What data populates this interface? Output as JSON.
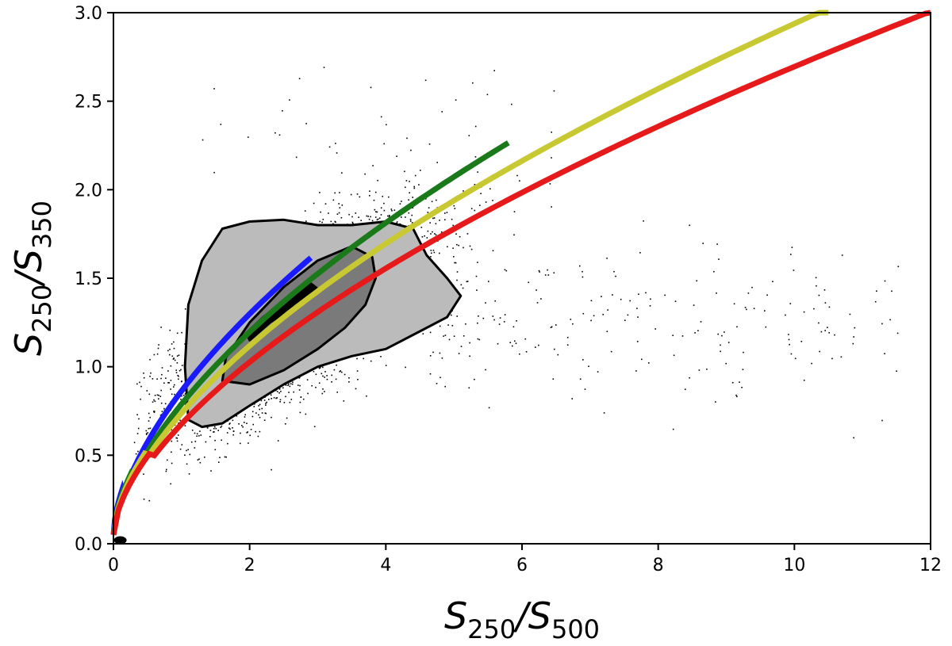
{
  "chart_data": {
    "type": "scatter",
    "title": "",
    "xlabel": {
      "main": "S",
      "sub1": "250",
      "slash": "/S",
      "sub2": "500"
    },
    "ylabel": {
      "main": "S",
      "sub1": "250",
      "slash": "/S",
      "sub2": "350"
    },
    "xlim": [
      0,
      12
    ],
    "ylim": [
      0,
      3.0
    ],
    "x_ticks": [
      "0",
      "2",
      "4",
      "6",
      "8",
      "10",
      "12"
    ],
    "y_ticks": [
      "0.0",
      "0.5",
      "1.0",
      "1.5",
      "2.0",
      "2.5",
      "3.0"
    ],
    "grid": false,
    "legend": null,
    "scatter": {
      "color": "#000000",
      "description_core_center": [
        2.6,
        1.25
      ]
    },
    "contours": [
      {
        "level": "outer",
        "fill": "#bbbbbb",
        "points": [
          [
            1.1,
            0.7
          ],
          [
            1.3,
            0.66
          ],
          [
            1.6,
            0.68
          ],
          [
            2.0,
            0.78
          ],
          [
            2.5,
            0.9
          ],
          [
            3.0,
            1.0
          ],
          [
            3.5,
            1.06
          ],
          [
            4.0,
            1.1
          ],
          [
            4.5,
            1.2
          ],
          [
            4.9,
            1.28
          ],
          [
            5.1,
            1.4
          ],
          [
            4.9,
            1.5
          ],
          [
            4.6,
            1.63
          ],
          [
            4.4,
            1.78
          ],
          [
            4.0,
            1.82
          ],
          [
            3.5,
            1.8
          ],
          [
            3.0,
            1.8
          ],
          [
            2.5,
            1.83
          ],
          [
            2.0,
            1.82
          ],
          [
            1.6,
            1.78
          ],
          [
            1.3,
            1.6
          ],
          [
            1.1,
            1.35
          ],
          [
            1.05,
            1.0
          ]
        ]
      },
      {
        "level": "middle",
        "fill": "#7a7a7a",
        "points": [
          [
            1.6,
            0.92
          ],
          [
            2.0,
            0.9
          ],
          [
            2.5,
            0.98
          ],
          [
            3.0,
            1.1
          ],
          [
            3.4,
            1.22
          ],
          [
            3.7,
            1.35
          ],
          [
            3.85,
            1.5
          ],
          [
            3.8,
            1.62
          ],
          [
            3.5,
            1.68
          ],
          [
            3.0,
            1.6
          ],
          [
            2.5,
            1.45
          ],
          [
            2.0,
            1.25
          ],
          [
            1.65,
            1.05
          ]
        ]
      },
      {
        "level": "inner",
        "fill": "#000000",
        "points": [
          [
            2.0,
            1.15
          ],
          [
            2.3,
            1.25
          ],
          [
            2.7,
            1.35
          ],
          [
            3.0,
            1.44
          ],
          [
            2.9,
            1.47
          ],
          [
            2.6,
            1.4
          ],
          [
            2.2,
            1.28
          ],
          [
            1.95,
            1.19
          ]
        ]
      }
    ],
    "series": [
      {
        "color": "#1a1aff",
        "x_range": [
          0,
          2.9
        ]
      },
      {
        "color": "#1a7a1a",
        "x_range": [
          0,
          5.8
        ]
      },
      {
        "color": "#c8c832",
        "x_range": [
          0,
          10.5
        ]
      },
      {
        "color": "#e61a1a",
        "x_range": [
          0,
          12
        ]
      }
    ]
  }
}
